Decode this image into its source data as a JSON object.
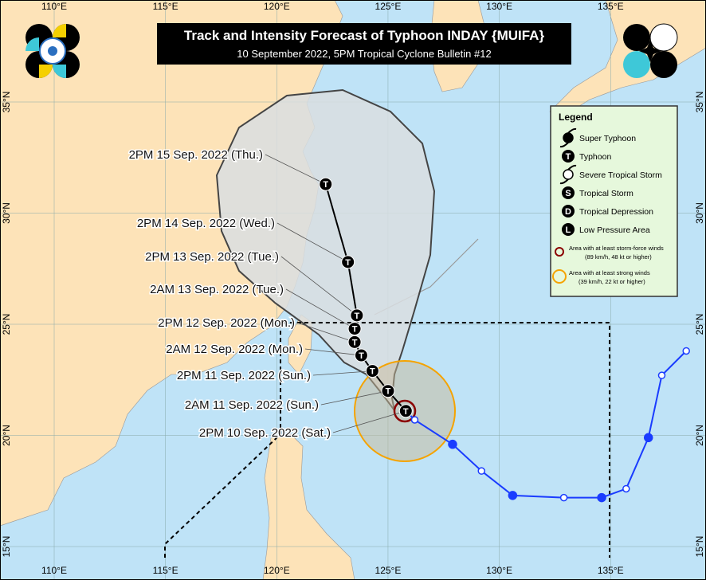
{
  "title": "Track and Intensity Forecast of Typhoon INDAY {MUIFA}",
  "subtitle": "10 September 2022, 5PM Tropical Cyclone Bulletin #12",
  "axes": {
    "lon_labels": [
      "110°E",
      "115°E",
      "120°E",
      "125°E",
      "130°E",
      "135°E"
    ],
    "lon_values": [
      110,
      115,
      120,
      125,
      130,
      135
    ],
    "lat_labels": [
      "15°N",
      "20°N",
      "25°N",
      "30°N",
      "35°N"
    ],
    "lat_values": [
      15,
      20,
      25,
      30,
      35
    ]
  },
  "forecast_track": [
    {
      "label": "2PM 10 Sep. 2022 (Sat.)",
      "lon": 125.8,
      "lat": 21.1,
      "category": "T"
    },
    {
      "label": "2AM 11 Sep. 2022 (Sun.)",
      "lon": 125.0,
      "lat": 22.0,
      "category": "T"
    },
    {
      "label": "2PM 11 Sep. 2022 (Sun.)",
      "lon": 124.3,
      "lat": 22.9,
      "category": "T"
    },
    {
      "label": "2AM 12 Sep. 2022 (Mon.)",
      "lon": 123.8,
      "lat": 23.6,
      "category": "T"
    },
    {
      "label": "2PM 12 Sep. 2022 (Mon.)",
      "lon": 123.5,
      "lat": 24.2,
      "category": "T"
    },
    {
      "label": "2AM 13 Sep. 2022 (Tue.)",
      "lon": 123.5,
      "lat": 24.8,
      "category": "T"
    },
    {
      "label": "2PM 13 Sep. 2022 (Tue.)",
      "lon": 123.6,
      "lat": 25.4,
      "category": "T"
    },
    {
      "label": "2PM 14 Sep. 2022 (Wed.)",
      "lon": 123.2,
      "lat": 27.8,
      "category": "T"
    },
    {
      "label": "2PM 15 Sep. 2022 (Thu.)",
      "lon": 122.2,
      "lat": 31.3,
      "category": "T"
    }
  ],
  "past_track": [
    {
      "lon": 126.2,
      "lat": 20.7,
      "filled": false
    },
    {
      "lon": 127.9,
      "lat": 19.6,
      "filled": true
    },
    {
      "lon": 129.2,
      "lat": 18.4,
      "filled": false
    },
    {
      "lon": 130.6,
      "lat": 17.3,
      "filled": true
    },
    {
      "lon": 132.9,
      "lat": 17.2,
      "filled": false
    },
    {
      "lon": 134.6,
      "lat": 17.2,
      "filled": true
    },
    {
      "lon": 135.7,
      "lat": 17.6,
      "filled": false
    },
    {
      "lon": 136.7,
      "lat": 19.9,
      "filled": true
    },
    {
      "lon": 137.3,
      "lat": 22.7,
      "filled": false
    },
    {
      "lon": 138.4,
      "lat": 23.8,
      "filled": false
    }
  ],
  "legend": {
    "title": "Legend",
    "items": [
      {
        "symbol": "super-typhoon",
        "label": "Super Typhoon"
      },
      {
        "symbol": "T",
        "label": "Typhoon"
      },
      {
        "symbol": "severe-tropical-storm",
        "label": "Severe Tropical Storm"
      },
      {
        "symbol": "S",
        "label": "Tropical Storm"
      },
      {
        "symbol": "D",
        "label": "Tropical Depression"
      },
      {
        "symbol": "L",
        "label": "Low Pressure Area"
      }
    ],
    "wind_areas": [
      {
        "color": "#8b0000",
        "line1": "Area with at least storm-force winds",
        "line2": "(89 km/h, 48 kt or higher)"
      },
      {
        "color": "#f5a300",
        "line1": "Area with at least strong winds",
        "line2": "(39 km/h, 22 kt or higher)"
      }
    ]
  },
  "colors": {
    "sea": "#bfe3f7",
    "land": "#fde3b8",
    "cone": "#d9dee0",
    "past_track": "#1a3cff",
    "storm_force": "#8b0000",
    "strong_winds": "#f5a300"
  }
}
